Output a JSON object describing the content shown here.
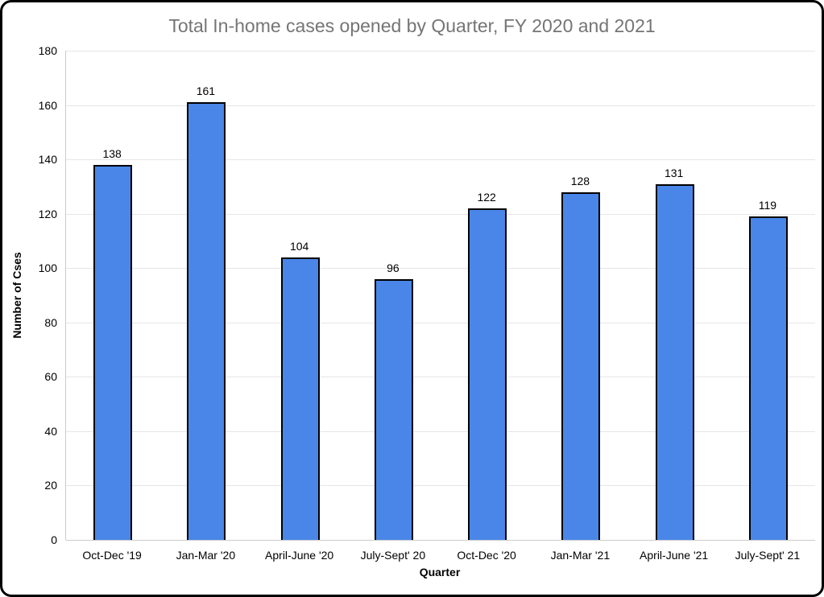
{
  "chart_data": {
    "type": "bar",
    "title": "Total In-home cases opened by Quarter, FY 2020 and 2021",
    "categories": [
      "Oct-Dec '19",
      "Jan-Mar '20",
      "April-June '20",
      "July-Sept' 20",
      "Oct-Dec '20",
      "Jan-Mar '21",
      "April-June '21",
      "July-Sept' 21"
    ],
    "values": [
      138,
      161,
      104,
      96,
      122,
      128,
      131,
      119
    ],
    "xlabel": "Quarter",
    "ylabel": "Number of Cses",
    "ylim": [
      0,
      180
    ],
    "yticks": [
      0,
      20,
      40,
      60,
      80,
      100,
      120,
      140,
      160,
      180
    ],
    "grid": true,
    "legend_position": "none",
    "data_labels": true
  },
  "style": {
    "bar_fill": "#4a86e8",
    "bar_stroke": "#000000",
    "title_color": "#757575",
    "axis_text_color": "#000000",
    "gridline_color": "#e6e6e6",
    "axis_line_color": "#cccccc",
    "frame_border_color": "#000000",
    "background": "#ffffff"
  }
}
